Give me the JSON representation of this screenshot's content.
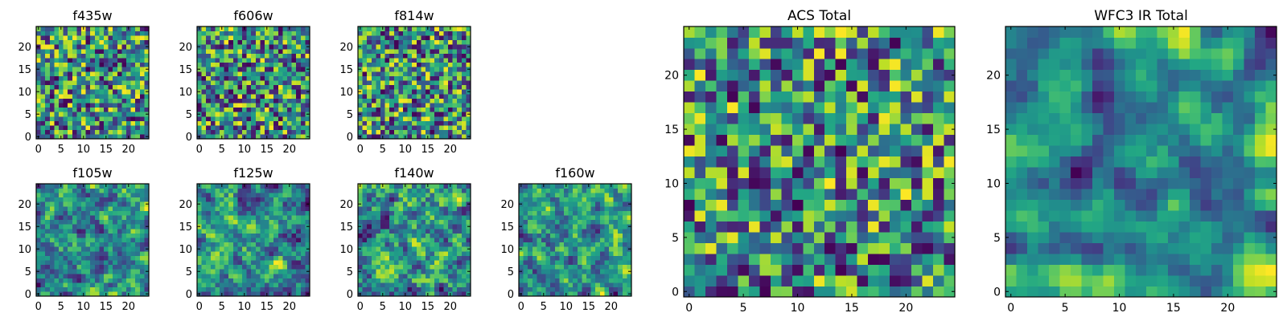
{
  "chart_data": [
    {
      "type": "heatmap",
      "title": "f435w",
      "xlim": [
        0,
        25
      ],
      "ylim": [
        0,
        25
      ],
      "grid_size": 25,
      "seed": 11,
      "smooth": 0,
      "xticks": [
        "0",
        "5",
        "10",
        "15",
        "20"
      ],
      "yticks": [
        "0",
        "5",
        "10",
        "15",
        "20"
      ],
      "colormap": "viridis",
      "grid": false
    },
    {
      "type": "heatmap",
      "title": "f606w",
      "xlim": [
        0,
        25
      ],
      "ylim": [
        0,
        25
      ],
      "grid_size": 25,
      "seed": 23,
      "smooth": 0,
      "xticks": [
        "0",
        "5",
        "10",
        "15",
        "20"
      ],
      "yticks": [
        "0",
        "5",
        "10",
        "15",
        "20"
      ],
      "colormap": "viridis",
      "grid": false
    },
    {
      "type": "heatmap",
      "title": "f814w",
      "xlim": [
        0,
        25
      ],
      "ylim": [
        0,
        25
      ],
      "grid_size": 25,
      "seed": 37,
      "smooth": 0,
      "xticks": [
        "0",
        "5",
        "10",
        "15",
        "20"
      ],
      "yticks": [
        "0",
        "5",
        "10",
        "15",
        "20"
      ],
      "colormap": "viridis",
      "grid": false
    },
    {
      "type": "heatmap",
      "title": "f105w",
      "xlim": [
        0,
        25
      ],
      "ylim": [
        0,
        25
      ],
      "grid_size": 25,
      "seed": 41,
      "smooth": 1,
      "xticks": [
        "0",
        "5",
        "10",
        "15",
        "20"
      ],
      "yticks": [
        "0",
        "5",
        "10",
        "15",
        "20"
      ],
      "colormap": "viridis",
      "grid": false
    },
    {
      "type": "heatmap",
      "title": "f125w",
      "xlim": [
        0,
        25
      ],
      "ylim": [
        0,
        25
      ],
      "grid_size": 25,
      "seed": 53,
      "smooth": 1,
      "xticks": [
        "0",
        "5",
        "10",
        "15",
        "20"
      ],
      "yticks": [
        "0",
        "5",
        "10",
        "15",
        "20"
      ],
      "colormap": "viridis",
      "grid": false
    },
    {
      "type": "heatmap",
      "title": "f140w",
      "xlim": [
        0,
        25
      ],
      "ylim": [
        0,
        25
      ],
      "grid_size": 25,
      "seed": 67,
      "smooth": 1,
      "xticks": [
        "0",
        "5",
        "10",
        "15",
        "20"
      ],
      "yticks": [
        "0",
        "5",
        "10",
        "15",
        "20"
      ],
      "colormap": "viridis",
      "grid": false
    },
    {
      "type": "heatmap",
      "title": "f160w",
      "xlim": [
        0,
        25
      ],
      "ylim": [
        0,
        25
      ],
      "grid_size": 25,
      "seed": 79,
      "smooth": 1,
      "xticks": [
        "0",
        "5",
        "10",
        "15",
        "20"
      ],
      "yticks": [
        "0",
        "5",
        "10",
        "15",
        "20"
      ],
      "colormap": "viridis",
      "grid": false
    },
    {
      "type": "heatmap",
      "title": "ACS Total",
      "xlim": [
        0,
        25
      ],
      "ylim": [
        0,
        25
      ],
      "grid_size": 25,
      "seed": 91,
      "smooth": 0,
      "xticks": [
        "0",
        "5",
        "10",
        "15",
        "20"
      ],
      "yticks": [
        "0",
        "5",
        "10",
        "15",
        "20"
      ],
      "colormap": "viridis",
      "grid": false
    },
    {
      "type": "heatmap",
      "title": "WFC3 IR Total",
      "xlim": [
        0,
        25
      ],
      "ylim": [
        0,
        25
      ],
      "grid_size": 25,
      "seed": 103,
      "smooth": 2,
      "xticks": [
        "0",
        "5",
        "10",
        "15",
        "20"
      ],
      "yticks": [
        "0",
        "5",
        "10",
        "15",
        "20"
      ],
      "colormap": "viridis",
      "grid": false
    }
  ]
}
